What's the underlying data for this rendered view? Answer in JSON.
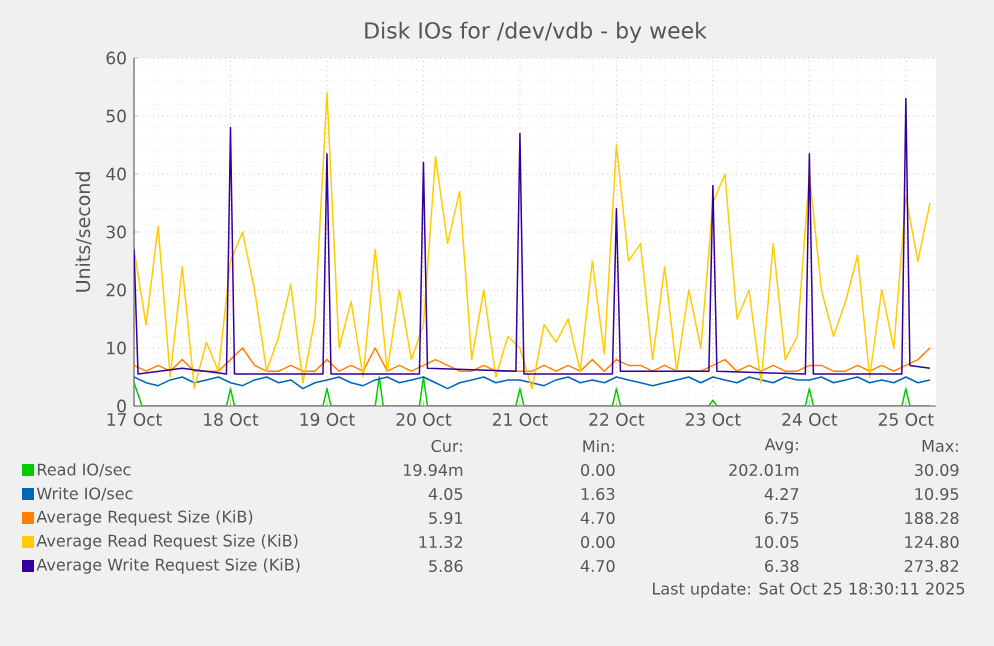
{
  "chart_data": {
    "type": "line",
    "title": "Disk IOs for /dev/vdb - by week",
    "ylabel": "Units/second",
    "xlim": [
      "2025-10-17T00:00",
      "2025-10-25T07:30"
    ],
    "xticks": [
      {
        "value": "2025-10-17",
        "label": "17 Oct"
      },
      {
        "value": "2025-10-18",
        "label": "18 Oct"
      },
      {
        "value": "2025-10-19",
        "label": "19 Oct"
      },
      {
        "value": "2025-10-20",
        "label": "20 Oct"
      },
      {
        "value": "2025-10-21",
        "label": "21 Oct"
      },
      {
        "value": "2025-10-22",
        "label": "22 Oct"
      },
      {
        "value": "2025-10-23",
        "label": "23 Oct"
      },
      {
        "value": "2025-10-24",
        "label": "24 Oct"
      },
      {
        "value": "2025-10-25",
        "label": "25 Oct"
      }
    ],
    "ylim": [
      0,
      60
    ],
    "yticks": [
      0,
      10,
      20,
      30,
      40,
      50,
      60
    ],
    "grid": true,
    "legend": "bottom",
    "x": [
      "2025-10-17T00:00",
      "2025-10-17T03:00",
      "2025-10-17T06:00",
      "2025-10-17T09:00",
      "2025-10-17T12:00",
      "2025-10-17T15:00",
      "2025-10-17T18:00",
      "2025-10-17T21:00",
      "2025-10-18T00:00",
      "2025-10-18T03:00",
      "2025-10-18T06:00",
      "2025-10-18T09:00",
      "2025-10-18T12:00",
      "2025-10-18T15:00",
      "2025-10-18T18:00",
      "2025-10-18T21:00",
      "2025-10-19T00:00",
      "2025-10-19T03:00",
      "2025-10-19T06:00",
      "2025-10-19T09:00",
      "2025-10-19T12:00",
      "2025-10-19T15:00",
      "2025-10-19T18:00",
      "2025-10-19T21:00",
      "2025-10-20T00:00",
      "2025-10-20T03:00",
      "2025-10-20T06:00",
      "2025-10-20T09:00",
      "2025-10-20T12:00",
      "2025-10-20T15:00",
      "2025-10-20T18:00",
      "2025-10-20T21:00",
      "2025-10-21T00:00",
      "2025-10-21T03:00",
      "2025-10-21T06:00",
      "2025-10-21T09:00",
      "2025-10-21T12:00",
      "2025-10-21T15:00",
      "2025-10-21T18:00",
      "2025-10-21T21:00",
      "2025-10-22T00:00",
      "2025-10-22T03:00",
      "2025-10-22T06:00",
      "2025-10-22T09:00",
      "2025-10-22T12:00",
      "2025-10-22T15:00",
      "2025-10-22T18:00",
      "2025-10-22T21:00",
      "2025-10-23T00:00",
      "2025-10-23T03:00",
      "2025-10-23T06:00",
      "2025-10-23T09:00",
      "2025-10-23T12:00",
      "2025-10-23T15:00",
      "2025-10-23T18:00",
      "2025-10-23T21:00",
      "2025-10-24T00:00",
      "2025-10-24T03:00",
      "2025-10-24T06:00",
      "2025-10-24T09:00",
      "2025-10-24T12:00",
      "2025-10-24T15:00",
      "2025-10-24T18:00",
      "2025-10-24T21:00",
      "2025-10-25T00:00",
      "2025-10-25T03:00",
      "2025-10-25T06:00"
    ],
    "series": [
      {
        "name": "Read IO/sec",
        "color": "#00cc00",
        "x": [
          "2025-10-17T00:00",
          "2025-10-17T02:00",
          "2025-10-17T23:00",
          "2025-10-18T00:00",
          "2025-10-18T01:00",
          "2025-10-18T23:00",
          "2025-10-19T00:00",
          "2025-10-19T01:00",
          "2025-10-19T12:00",
          "2025-10-19T13:00",
          "2025-10-19T14:00",
          "2025-10-19T23:00",
          "2025-10-20T00:00",
          "2025-10-20T01:00",
          "2025-10-20T23:00",
          "2025-10-21T00:00",
          "2025-10-21T01:00",
          "2025-10-21T23:00",
          "2025-10-22T00:00",
          "2025-10-22T01:00",
          "2025-10-22T23:00",
          "2025-10-23T00:00",
          "2025-10-23T01:00",
          "2025-10-23T23:00",
          "2025-10-24T00:00",
          "2025-10-24T01:00",
          "2025-10-24T23:00",
          "2025-10-25T00:00",
          "2025-10-25T01:00",
          "2025-10-25T06:00"
        ],
        "values": [
          4,
          0,
          0,
          3,
          0,
          0,
          3,
          0,
          0,
          5,
          0,
          0,
          5,
          0,
          0,
          3,
          0,
          0,
          3,
          0,
          0,
          1,
          0,
          0,
          3,
          0,
          0,
          3,
          0,
          0
        ]
      },
      {
        "name": "Write IO/sec",
        "color": "#0066b3",
        "values": [
          5,
          4,
          3.5,
          4.5,
          5,
          4,
          4.5,
          5,
          4,
          3.5,
          4.5,
          5,
          4,
          4.5,
          3,
          4,
          4.5,
          5,
          4,
          3.5,
          4.5,
          5,
          4,
          4.5,
          5,
          4,
          3,
          4,
          4.5,
          5,
          4,
          4.5,
          4.5,
          4,
          3.5,
          4.5,
          5,
          4,
          4.5,
          4,
          5,
          4.5,
          4,
          3.5,
          4,
          4.5,
          5,
          4,
          5,
          4.5,
          4,
          5,
          4.5,
          4,
          5,
          4.5,
          4.5,
          5,
          4,
          4.5,
          5,
          4,
          4.5,
          4,
          5,
          4,
          4.5
        ]
      },
      {
        "name": "Average Request Size (KiB)",
        "color": "#ff8000",
        "values": [
          7,
          6,
          7,
          6,
          8,
          6,
          6,
          6,
          8,
          10,
          7,
          6,
          6,
          7,
          6,
          6,
          8,
          6,
          7,
          6,
          10,
          6,
          7,
          6,
          7,
          8,
          7,
          6,
          6,
          7,
          6,
          6,
          6,
          6,
          7,
          6,
          7,
          6,
          8,
          6,
          8,
          7,
          7,
          6,
          7,
          6,
          null,
          6,
          7,
          8,
          6,
          7,
          6,
          7,
          6,
          6,
          7,
          7,
          6,
          6,
          7,
          6,
          7,
          6,
          7,
          8,
          10
        ]
      },
      {
        "name": "Average Read Request Size (KiB)",
        "color": "#ffcc00",
        "values": [
          27,
          14,
          31,
          5,
          24,
          3,
          11,
          6,
          25,
          30,
          20,
          6,
          12,
          21,
          4,
          15,
          54,
          10,
          18,
          5,
          27,
          6,
          20,
          8,
          14,
          43,
          28,
          37,
          8,
          20,
          5,
          12,
          10,
          3,
          14,
          11,
          15,
          6,
          25,
          9,
          45,
          25,
          28,
          8,
          24,
          6,
          20,
          10,
          35,
          40,
          15,
          20,
          4,
          28,
          8,
          12,
          40,
          20,
          12,
          18,
          26,
          5,
          20,
          10,
          36,
          25,
          35
        ]
      },
      {
        "name": "Average Write Request Size (KiB)",
        "color": "#330099",
        "x": [
          "2025-10-17T00:00",
          "2025-10-17T01:00",
          "2025-10-17T12:00",
          "2025-10-17T23:00",
          "2025-10-18T00:00",
          "2025-10-18T01:00",
          "2025-10-18T23:00",
          "2025-10-19T00:00",
          "2025-10-19T01:00",
          "2025-10-19T23:00",
          "2025-10-20T00:00",
          "2025-10-20T01:00",
          "2025-10-20T23:00",
          "2025-10-21T00:00",
          "2025-10-21T01:00",
          "2025-10-21T23:00",
          "2025-10-22T00:00",
          "2025-10-22T01:00",
          "2025-10-22T23:00",
          "2025-10-23T00:00",
          "2025-10-23T01:00",
          "2025-10-23T23:00",
          "2025-10-24T00:00",
          "2025-10-24T01:00",
          "2025-10-24T23:00",
          "2025-10-25T00:00",
          "2025-10-25T01:00",
          "2025-10-25T06:00"
        ],
        "values": [
          27,
          5.5,
          6.5,
          5.5,
          48,
          5.5,
          5.5,
          43.5,
          5.5,
          5.5,
          42,
          6.5,
          6,
          47,
          5.5,
          5.5,
          34,
          6,
          6,
          38,
          6,
          5.5,
          43.5,
          5.5,
          5.5,
          53,
          7,
          6.5
        ]
      }
    ],
    "annotations": [
      "Cur:",
      "Min:",
      "Avg:",
      "Max:",
      "19.94m",
      "0.00",
      "202.01m",
      "30.09",
      "4.05",
      "1.63",
      "4.27",
      "10.95",
      "5.91",
      "4.70",
      "6.75",
      "188.28",
      "11.32",
      "0.00",
      "10.05",
      "124.80",
      "5.86",
      "4.70",
      "6.38",
      "273.82",
      "Last update: Sat Oct 25 18:30:11 2025"
    ]
  }
}
